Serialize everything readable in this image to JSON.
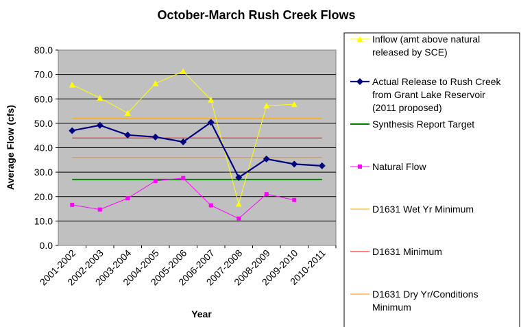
{
  "chart_data": {
    "type": "line",
    "title": "October-March Rush Creek Flows",
    "xlabel": "Year",
    "ylabel": "Average Flow (cfs)",
    "ylim": [
      0,
      80
    ],
    "yticks": [
      "0.0",
      "10.0",
      "20.0",
      "30.0",
      "40.0",
      "50.0",
      "60.0",
      "70.0",
      "80.0"
    ],
    "grid": "horizontal",
    "plot_background": "#c0c0c0",
    "legend_position": "right",
    "categories": [
      "2001-2002",
      "2002-2003",
      "2003-2004",
      "2004-2005",
      "2005-2006",
      "2006-2007",
      "2007-2008",
      "2008-2009",
      "2009-2010",
      "2010-2011"
    ],
    "series": [
      {
        "name": "Inflow (amt above natural released by SCE)",
        "legend_lines": [
          "Inflow (amt above natural",
          "released by SCE)"
        ],
        "color": "#ffff00",
        "marker": "triangle",
        "values": [
          65.8,
          60.4,
          54.2,
          66.3,
          71.3,
          59.6,
          17.0,
          57.2,
          57.8,
          null
        ]
      },
      {
        "name": "Actual Release to Rush Creek from Grant Lake Reservoir (2011 proposed)",
        "legend_lines": [
          "Actual Release to Rush Creek",
          "from Grant Lake Reservoir",
          "(2011 proposed)"
        ],
        "color": "#000080",
        "marker": "diamond",
        "values": [
          47.0,
          49.2,
          45.2,
          44.4,
          42.4,
          50.4,
          27.8,
          35.4,
          33.3,
          32.6
        ]
      },
      {
        "name": "Synthesis Report Target",
        "legend_lines": [
          "Synthesis Report Target"
        ],
        "color": "#008000",
        "marker": "none",
        "values": [
          27.0,
          27.0,
          27.0,
          27.0,
          27.0,
          27.0,
          27.0,
          27.0,
          27.0,
          27.0
        ]
      },
      {
        "name": "Natural Flow",
        "legend_lines": [
          "Natural Flow"
        ],
        "color": "#ff00ff",
        "marker": "square",
        "values": [
          16.6,
          14.7,
          19.3,
          26.4,
          27.6,
          16.4,
          11.0,
          21.0,
          18.6,
          null
        ]
      },
      {
        "name": "D1631 Wet Yr Minimum",
        "legend_lines": [
          "D1631 Wet Yr Minimum"
        ],
        "color": "#ffa500",
        "marker": "none",
        "values": [
          52.0,
          52.0,
          52.0,
          52.0,
          52.0,
          52.0,
          52.0,
          52.0,
          52.0,
          52.0
        ]
      },
      {
        "name": "D1631 Minimum",
        "legend_lines": [
          "D1631 Minimum"
        ],
        "color": "#ff0000",
        "marker": "none",
        "values": [
          44.0,
          44.0,
          44.0,
          44.0,
          44.0,
          44.0,
          44.0,
          44.0,
          44.0,
          44.0
        ]
      },
      {
        "name": "D1631 Dry Yr/Conditions Minimum",
        "legend_lines": [
          "D1631 Dry Yr/Conditions",
          "Minimum"
        ],
        "color": "#ff8c00",
        "marker": "none",
        "values": [
          36.0,
          36.0,
          36.0,
          36.0,
          36.0,
          36.0,
          36.0,
          36.0,
          36.0,
          36.0
        ]
      }
    ]
  }
}
